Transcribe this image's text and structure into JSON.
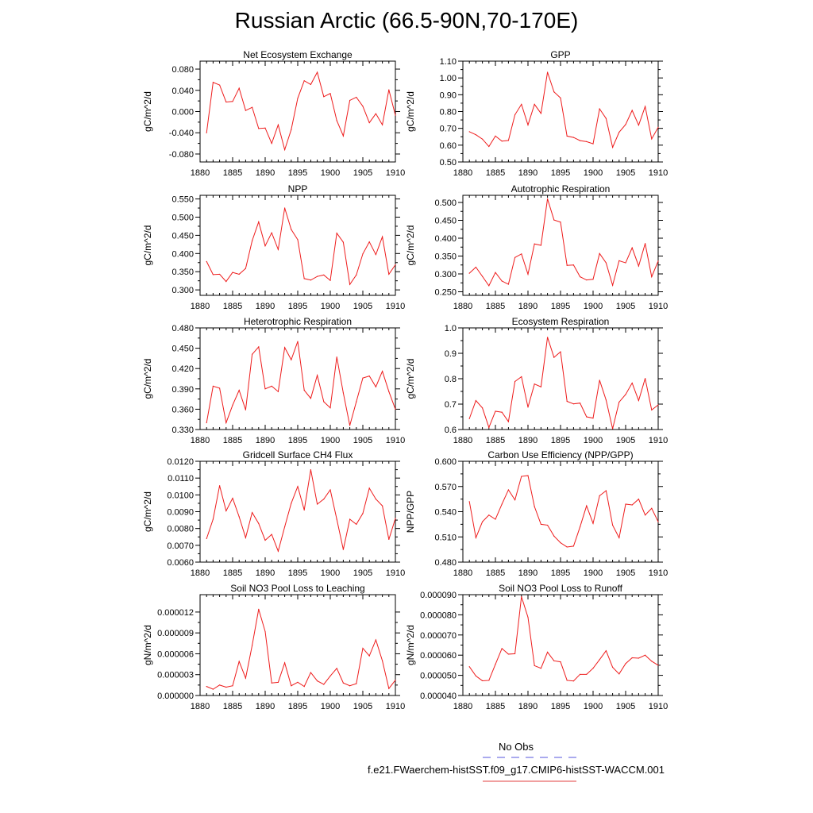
{
  "page_title": "Russian Arctic (66.5-90N,70-170E)",
  "legend": {
    "entries": [
      {
        "label": "No Obs",
        "color": "#5555dd",
        "dash": true
      },
      {
        "label": "f.e21.FWaerchem-histSST.f09_g17.CMIP6-histSST-WACCM.001",
        "color": "#e34040",
        "dash": false
      }
    ]
  },
  "line_color": "#ee1c1c",
  "chart_data": [
    {
      "type": "line",
      "title": "Net Ecosystem Exchange",
      "ylabel": "gC/m^2/d",
      "xlim": [
        1880,
        1910
      ],
      "xticks": [
        "1880",
        "1885",
        "1890",
        "1895",
        "1900",
        "1905",
        "1910"
      ],
      "ylim": [
        -0.095,
        0.095
      ],
      "yticks": [
        -0.08,
        -0.04,
        0.0,
        0.04,
        0.08
      ],
      "ytick_labels": [
        "-0.080",
        "-0.040",
        "0.000",
        "0.040",
        "0.080"
      ],
      "x": [
        1881,
        1882,
        1883,
        1884,
        1885,
        1886,
        1887,
        1888,
        1889,
        1890,
        1891,
        1892,
        1893,
        1894,
        1895,
        1896,
        1897,
        1898,
        1899,
        1900,
        1901,
        1902,
        1903,
        1904,
        1905,
        1906,
        1907,
        1908,
        1909,
        1910
      ],
      "values": [
        -0.04,
        0.055,
        0.05,
        0.018,
        0.019,
        0.044,
        0.002,
        0.008,
        -0.032,
        -0.031,
        -0.06,
        -0.025,
        -0.072,
        -0.034,
        0.025,
        0.058,
        0.051,
        0.074,
        0.028,
        0.034,
        -0.017,
        -0.046,
        0.021,
        0.027,
        0.01,
        -0.021,
        -0.004,
        -0.025,
        0.041,
        -0.007
      ]
    },
    {
      "type": "line",
      "title": "GPP",
      "ylabel": "gC/m^2/d",
      "xlim": [
        1880,
        1910
      ],
      "xticks": [
        "1880",
        "1885",
        "1890",
        "1895",
        "1900",
        "1905",
        "1910"
      ],
      "ylim": [
        0.5,
        1.1
      ],
      "yticks": [
        0.5,
        0.6,
        0.7,
        0.8,
        0.9,
        1.0,
        1.1
      ],
      "ytick_labels": [
        "0.50",
        "0.60",
        "0.70",
        "0.80",
        "0.90",
        "1.00",
        "1.10"
      ],
      "x": [
        1881,
        1882,
        1883,
        1884,
        1885,
        1886,
        1887,
        1888,
        1889,
        1890,
        1891,
        1892,
        1893,
        1894,
        1895,
        1896,
        1897,
        1898,
        1899,
        1900,
        1901,
        1902,
        1903,
        1904,
        1905,
        1906,
        1907,
        1908,
        1909,
        1910
      ],
      "values": [
        0.68,
        0.662,
        0.636,
        0.592,
        0.654,
        0.624,
        0.628,
        0.781,
        0.843,
        0.72,
        0.843,
        0.789,
        1.034,
        0.917,
        0.881,
        0.654,
        0.646,
        0.627,
        0.621,
        0.608,
        0.816,
        0.759,
        0.587,
        0.677,
        0.723,
        0.807,
        0.719,
        0.83,
        0.637,
        0.706
      ]
    },
    {
      "type": "line",
      "title": "NPP",
      "ylabel": "gC/m^2/d",
      "xlim": [
        1880,
        1910
      ],
      "xticks": [
        "1880",
        "1885",
        "1890",
        "1895",
        "1900",
        "1905",
        "1910"
      ],
      "ylim": [
        0.285,
        0.56
      ],
      "yticks": [
        0.3,
        0.35,
        0.4,
        0.45,
        0.5,
        0.55
      ],
      "ytick_labels": [
        "0.300",
        "0.350",
        "0.400",
        "0.450",
        "0.500",
        "0.550"
      ],
      "x": [
        1881,
        1882,
        1883,
        1884,
        1885,
        1886,
        1887,
        1888,
        1889,
        1890,
        1891,
        1892,
        1893,
        1894,
        1895,
        1896,
        1897,
        1898,
        1899,
        1900,
        1901,
        1902,
        1903,
        1904,
        1905,
        1906,
        1907,
        1908,
        1909,
        1910
      ],
      "values": [
        0.378,
        0.342,
        0.343,
        0.323,
        0.348,
        0.343,
        0.359,
        0.435,
        0.487,
        0.421,
        0.457,
        0.411,
        0.525,
        0.466,
        0.438,
        0.331,
        0.327,
        0.337,
        0.341,
        0.326,
        0.456,
        0.431,
        0.315,
        0.341,
        0.399,
        0.432,
        0.397,
        0.446,
        0.343,
        0.369
      ]
    },
    {
      "type": "line",
      "title": "Autotrophic Respiration",
      "ylabel": "gC/m^2/d",
      "xlim": [
        1880,
        1910
      ],
      "xticks": [
        "1880",
        "1885",
        "1890",
        "1895",
        "1900",
        "1905",
        "1910"
      ],
      "ylim": [
        0.24,
        0.52
      ],
      "yticks": [
        0.25,
        0.3,
        0.35,
        0.4,
        0.45,
        0.5
      ],
      "ytick_labels": [
        "0.250",
        "0.300",
        "0.350",
        "0.400",
        "0.450",
        "0.500"
      ],
      "x": [
        1881,
        1882,
        1883,
        1884,
        1885,
        1886,
        1887,
        1888,
        1889,
        1890,
        1891,
        1892,
        1893,
        1894,
        1895,
        1896,
        1897,
        1898,
        1899,
        1900,
        1901,
        1902,
        1903,
        1904,
        1905,
        1906,
        1907,
        1908,
        1909,
        1910
      ],
      "values": [
        0.302,
        0.319,
        0.293,
        0.267,
        0.304,
        0.28,
        0.271,
        0.346,
        0.356,
        0.299,
        0.384,
        0.38,
        0.51,
        0.451,
        0.445,
        0.324,
        0.325,
        0.292,
        0.283,
        0.285,
        0.357,
        0.331,
        0.268,
        0.337,
        0.331,
        0.373,
        0.322,
        0.385,
        0.292,
        0.336
      ]
    },
    {
      "type": "line",
      "title": "Heterotrophic Respiration",
      "ylabel": "gC/m^2/d",
      "xlim": [
        1880,
        1910
      ],
      "xticks": [
        "1880",
        "1885",
        "1890",
        "1895",
        "1900",
        "1905",
        "1910"
      ],
      "ylim": [
        0.33,
        0.48
      ],
      "yticks": [
        0.33,
        0.36,
        0.39,
        0.42,
        0.45,
        0.48
      ],
      "ytick_labels": [
        "0.330",
        "0.360",
        "0.390",
        "0.420",
        "0.450",
        "0.480"
      ],
      "x": [
        1881,
        1882,
        1883,
        1884,
        1885,
        1886,
        1887,
        1888,
        1889,
        1890,
        1891,
        1892,
        1893,
        1894,
        1895,
        1896,
        1897,
        1898,
        1899,
        1900,
        1901,
        1902,
        1903,
        1904,
        1905,
        1906,
        1907,
        1908,
        1909,
        1910
      ],
      "values": [
        0.34,
        0.394,
        0.391,
        0.34,
        0.366,
        0.388,
        0.359,
        0.441,
        0.452,
        0.39,
        0.394,
        0.386,
        0.451,
        0.433,
        0.46,
        0.388,
        0.376,
        0.41,
        0.371,
        0.362,
        0.437,
        0.384,
        0.336,
        0.371,
        0.406,
        0.409,
        0.393,
        0.416,
        0.386,
        0.36
      ]
    },
    {
      "type": "line",
      "title": "Ecosystem Respiration",
      "ylabel": "gC/m^2/d",
      "xlim": [
        1880,
        1910
      ],
      "xticks": [
        "1880",
        "1885",
        "1890",
        "1895",
        "1900",
        "1905",
        "1910"
      ],
      "ylim": [
        0.6,
        1.0
      ],
      "yticks": [
        0.6,
        0.7,
        0.8,
        0.9,
        1.0
      ],
      "ytick_labels": [
        "0.6",
        "0.7",
        "0.8",
        "0.9",
        "1.0"
      ],
      "x": [
        1881,
        1882,
        1883,
        1884,
        1885,
        1886,
        1887,
        1888,
        1889,
        1890,
        1891,
        1892,
        1893,
        1894,
        1895,
        1896,
        1897,
        1898,
        1899,
        1900,
        1901,
        1902,
        1903,
        1904,
        1905,
        1906,
        1907,
        1908,
        1909,
        1910
      ],
      "values": [
        0.643,
        0.714,
        0.685,
        0.608,
        0.672,
        0.668,
        0.631,
        0.789,
        0.808,
        0.688,
        0.779,
        0.768,
        0.963,
        0.884,
        0.906,
        0.711,
        0.701,
        0.704,
        0.65,
        0.645,
        0.794,
        0.716,
        0.603,
        0.708,
        0.738,
        0.783,
        0.714,
        0.801,
        0.677,
        0.697
      ]
    },
    {
      "type": "line",
      "title": "Gridcell Surface CH4 Flux",
      "ylabel": "gC/m^2/d",
      "xlim": [
        1880,
        1910
      ],
      "xticks": [
        "1880",
        "1885",
        "1890",
        "1895",
        "1900",
        "1905",
        "1910"
      ],
      "ylim": [
        0.006,
        0.012
      ],
      "yticks": [
        0.006,
        0.007,
        0.008,
        0.009,
        0.01,
        0.011,
        0.012
      ],
      "ytick_labels": [
        "0.0060",
        "0.0070",
        "0.0080",
        "0.0090",
        "0.0100",
        "0.0110",
        "0.0120"
      ],
      "x": [
        1881,
        1882,
        1883,
        1884,
        1885,
        1886,
        1887,
        1888,
        1889,
        1890,
        1891,
        1892,
        1893,
        1894,
        1895,
        1896,
        1897,
        1898,
        1899,
        1900,
        1901,
        1902,
        1903,
        1904,
        1905,
        1906,
        1907,
        1908,
        1909,
        1910
      ],
      "values": [
        0.0074,
        0.00855,
        0.01055,
        0.00905,
        0.0098,
        0.0087,
        0.00745,
        0.00895,
        0.0083,
        0.0073,
        0.00765,
        0.00665,
        0.0081,
        0.0095,
        0.0105,
        0.0091,
        0.0115,
        0.00945,
        0.00975,
        0.0103,
        0.00855,
        0.00675,
        0.00855,
        0.00825,
        0.0089,
        0.0104,
        0.00975,
        0.00935,
        0.00735,
        0.0086
      ]
    },
    {
      "type": "line",
      "title": "Carbon Use Efficiency (NPP/GPP)",
      "ylabel": "NPP/GPP",
      "xlim": [
        1880,
        1910
      ],
      "xticks": [
        "1880",
        "1885",
        "1890",
        "1895",
        "1900",
        "1905",
        "1910"
      ],
      "ylim": [
        0.48,
        0.6
      ],
      "yticks": [
        0.48,
        0.51,
        0.54,
        0.57,
        0.6
      ],
      "ytick_labels": [
        "0.480",
        "0.510",
        "0.540",
        "0.570",
        "0.600"
      ],
      "x": [
        1881,
        1882,
        1883,
        1884,
        1885,
        1886,
        1887,
        1888,
        1889,
        1890,
        1891,
        1892,
        1893,
        1894,
        1895,
        1896,
        1897,
        1898,
        1899,
        1900,
        1901,
        1902,
        1903,
        1904,
        1905,
        1906,
        1907,
        1908,
        1909,
        1910
      ],
      "values": [
        0.552,
        0.509,
        0.528,
        0.536,
        0.531,
        0.549,
        0.566,
        0.554,
        0.582,
        0.583,
        0.546,
        0.525,
        0.524,
        0.511,
        0.503,
        0.498,
        0.499,
        0.522,
        0.547,
        0.526,
        0.559,
        0.565,
        0.524,
        0.509,
        0.549,
        0.548,
        0.555,
        0.536,
        0.544,
        0.528
      ]
    },
    {
      "type": "line",
      "title": "Soil NO3 Pool Loss to Leaching",
      "ylabel": "gN/m^2/d",
      "xlim": [
        1880,
        1910
      ],
      "xticks": [
        "1880",
        "1885",
        "1890",
        "1895",
        "1900",
        "1905",
        "1910"
      ],
      "ylim": [
        0.0,
        1.45e-05
      ],
      "yticks": [
        0.0,
        3e-06,
        6e-06,
        9e-06,
        1.2e-05
      ],
      "ytick_labels": [
        "0.000000",
        "0.000003",
        "0.000006",
        "0.000009",
        "0.000012"
      ],
      "x": [
        1881,
        1882,
        1883,
        1884,
        1885,
        1886,
        1887,
        1888,
        1889,
        1890,
        1891,
        1892,
        1893,
        1894,
        1895,
        1896,
        1897,
        1898,
        1899,
        1900,
        1901,
        1902,
        1903,
        1904,
        1905,
        1906,
        1907,
        1908,
        1909,
        1910
      ],
      "values": [
        1.3e-06,
        9e-07,
        1.5e-06,
        1.2e-06,
        1.4e-06,
        4.9e-06,
        2.5e-06,
        7.2e-06,
        1.24e-05,
        9.2e-06,
        1.8e-06,
        1.9e-06,
        4.7e-06,
        1.4e-06,
        1.9e-06,
        1.3e-06,
        3.3e-06,
        2.1e-06,
        1.6e-06,
        2.8e-06,
        3.9e-06,
        1.8e-06,
        1.4e-06,
        1.7e-06,
        6.8e-06,
        5.7e-06,
        8e-06,
        5e-06,
        1e-06,
        2.2e-06
      ]
    },
    {
      "type": "line",
      "title": "Soil NO3 Pool Loss to Runoff",
      "ylabel": "gN/m^2/d",
      "xlim": [
        1880,
        1910
      ],
      "xticks": [
        "1880",
        "1885",
        "1890",
        "1895",
        "1900",
        "1905",
        "1910"
      ],
      "ylim": [
        4e-05,
        9e-05
      ],
      "yticks": [
        4e-05,
        5e-05,
        6e-05,
        7e-05,
        8e-05,
        9e-05
      ],
      "ytick_labels": [
        "0.000040",
        "0.000050",
        "0.000060",
        "0.000070",
        "0.000080",
        "0.000090"
      ],
      "x": [
        1881,
        1882,
        1883,
        1884,
        1885,
        1886,
        1887,
        1888,
        1889,
        1890,
        1891,
        1892,
        1893,
        1894,
        1895,
        1896,
        1897,
        1898,
        1899,
        1900,
        1901,
        1902,
        1903,
        1904,
        1905,
        1906,
        1907,
        1908,
        1909,
        1910
      ],
      "values": [
        5.43e-05,
        4.97e-05,
        4.73e-05,
        4.75e-05,
        5.55e-05,
        6.33e-05,
        6.05e-05,
        6.07e-05,
        8.9e-05,
        7.88e-05,
        5.48e-05,
        5.35e-05,
        6.15e-05,
        5.72e-05,
        5.67e-05,
        4.75e-05,
        4.72e-05,
        5.05e-05,
        5.05e-05,
        5.35e-05,
        5.78e-05,
        6.22e-05,
        5.4e-05,
        5.07e-05,
        5.58e-05,
        5.87e-05,
        5.85e-05,
        6e-05,
        5.7e-05,
        5.5e-05
      ]
    }
  ]
}
